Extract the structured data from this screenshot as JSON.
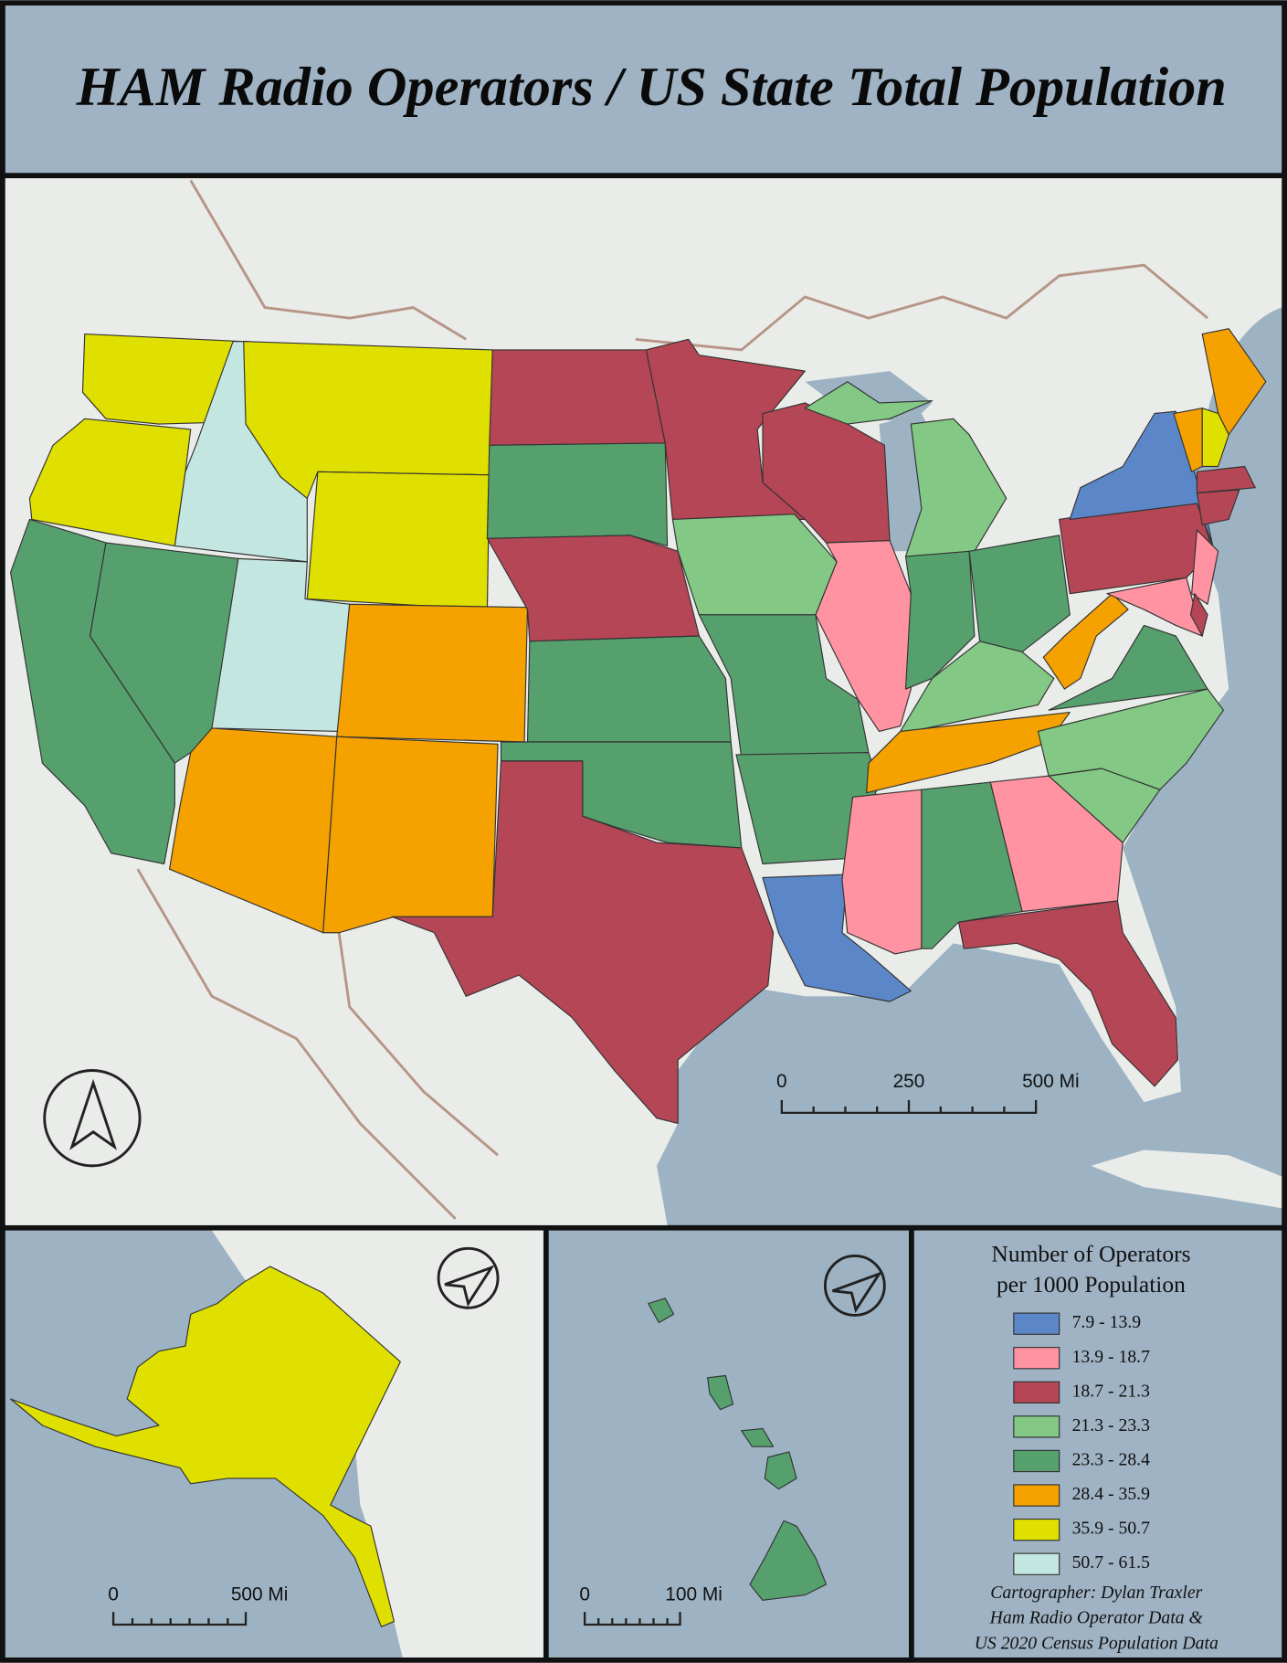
{
  "header": {
    "title": "HAM Radio Operators / US State Total Population"
  },
  "main_map": {
    "scale_bar": {
      "labels": [
        "0",
        "250",
        "500 Mi"
      ]
    }
  },
  "alaska_inset": {
    "scale_bar": {
      "labels": [
        "0",
        "500 Mi"
      ]
    }
  },
  "hawaii_inset": {
    "scale_bar": {
      "labels": [
        "0",
        "100 Mi"
      ]
    }
  },
  "legend": {
    "title_lines": [
      "Number of Operators",
      "per 1000 Population"
    ],
    "classes": [
      {
        "label": "7.9 - 13.9",
        "color": "#5b87c9"
      },
      {
        "label": "13.9 - 18.7",
        "color": "#ff93a2"
      },
      {
        "label": "18.7 - 21.3",
        "color": "#b44655"
      },
      {
        "label": "21.3 - 23.3",
        "color": "#83c884"
      },
      {
        "label": "23.3 - 28.4",
        "color": "#56a06e"
      },
      {
        "label": "28.4 - 35.9",
        "color": "#f5a100"
      },
      {
        "label": "35.9 - 50.7",
        "color": "#e0e000"
      },
      {
        "label": "50.7 - 61.5",
        "color": "#c3e6e0"
      }
    ]
  },
  "credits": [
    "Cartographer: Dylan Traxler",
    "Ham Radio Operator Data &",
    "US 2020 Census Population Data"
  ]
}
